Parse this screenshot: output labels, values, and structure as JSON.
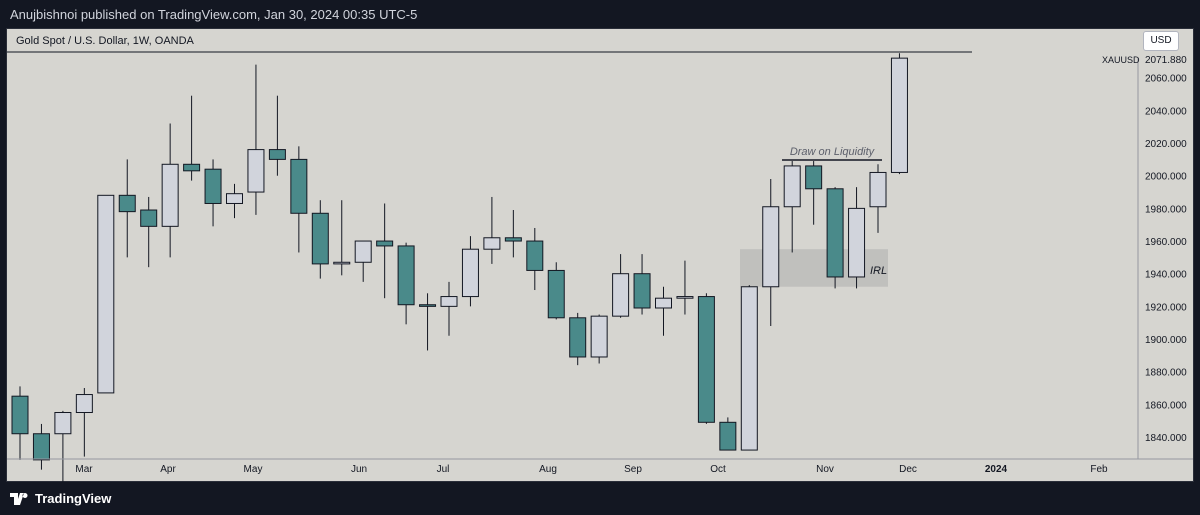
{
  "publisher_line": "Anujbishnoi published on TradingView.com, Jan 30, 2024 00:35 UTC-5",
  "chart_header": "Gold Spot / U.S. Dollar, 1W, OANDA",
  "currency_button": "USD",
  "footer_brand": "TradingView",
  "icons": {
    "logo": "tradingview-logo-icon"
  },
  "colors": {
    "bull_fill": "#d1d4dc",
    "bear_fill": "#4a8a8a",
    "wick": "#131722",
    "background": "#d6d5d0",
    "zone": "#c0c0bd"
  },
  "chart_data": {
    "type": "candlestick",
    "symbol_label": "XAUUSD",
    "last_price_label": "2071.880",
    "y_ticks": [
      "1840.000",
      "1860.000",
      "1880.000",
      "1900.000",
      "1920.000",
      "1940.000",
      "1960.000",
      "1980.000",
      "2000.000",
      "2020.000",
      "2040.000",
      "2060.000"
    ],
    "x_ticks": [
      "Mar",
      "Apr",
      "May",
      "Jun",
      "Jul",
      "Aug",
      "Sep",
      "Oct",
      "Nov",
      "Dec",
      "2024",
      "Feb"
    ],
    "candles": [
      {
        "date": "2023-02-06",
        "o": 1865,
        "h": 1871,
        "l": 1826,
        "c": 1842
      },
      {
        "date": "2023-02-13",
        "o": 1842,
        "h": 1848,
        "l": 1820,
        "c": 1826
      },
      {
        "date": "2023-02-20",
        "o": 1842,
        "h": 1856,
        "l": 1805,
        "c": 1855
      },
      {
        "date": "2023-02-27",
        "o": 1855,
        "h": 1870,
        "l": 1828,
        "c": 1866
      },
      {
        "date": "2023-03-06",
        "o": 1867,
        "h": 1988,
        "l": 1867,
        "c": 1988
      },
      {
        "date": "2023-03-13",
        "o": 1988,
        "h": 2010,
        "l": 1950,
        "c": 1978
      },
      {
        "date": "2023-03-20",
        "o": 1979,
        "h": 1987,
        "l": 1944,
        "c": 1969
      },
      {
        "date": "2023-03-27",
        "o": 1969,
        "h": 2032,
        "l": 1950,
        "c": 2007
      },
      {
        "date": "2023-04-03",
        "o": 2007,
        "h": 2049,
        "l": 1997,
        "c": 2003
      },
      {
        "date": "2023-04-10",
        "o": 2004,
        "h": 2010,
        "l": 1969,
        "c": 1983
      },
      {
        "date": "2023-04-17",
        "o": 1983,
        "h": 1995,
        "l": 1974,
        "c": 1989
      },
      {
        "date": "2023-04-24",
        "o": 1990,
        "h": 2068,
        "l": 1976,
        "c": 2016
      },
      {
        "date": "2023-05-01",
        "o": 2016,
        "h": 2049,
        "l": 2000,
        "c": 2010
      },
      {
        "date": "2023-05-08",
        "o": 2010,
        "h": 2018,
        "l": 1953,
        "c": 1977
      },
      {
        "date": "2023-05-15",
        "o": 1977,
        "h": 1985,
        "l": 1937,
        "c": 1946
      },
      {
        "date": "2023-05-22",
        "o": 1946,
        "h": 1985,
        "l": 1939,
        "c": 1947
      },
      {
        "date": "2023-05-29",
        "o": 1947,
        "h": 1960,
        "l": 1935,
        "c": 1960
      },
      {
        "date": "2023-06-05",
        "o": 1960,
        "h": 1983,
        "l": 1925,
        "c": 1957
      },
      {
        "date": "2023-06-12",
        "o": 1957,
        "h": 1959,
        "l": 1909,
        "c": 1921
      },
      {
        "date": "2023-06-19",
        "o": 1921,
        "h": 1928,
        "l": 1893,
        "c": 1920
      },
      {
        "date": "2023-06-26",
        "o": 1920,
        "h": 1935,
        "l": 1902,
        "c": 1926
      },
      {
        "date": "2023-07-03",
        "o": 1926,
        "h": 1963,
        "l": 1920,
        "c": 1955
      },
      {
        "date": "2023-07-10",
        "o": 1955,
        "h": 1987,
        "l": 1946,
        "c": 1962
      },
      {
        "date": "2023-07-17",
        "o": 1962,
        "h": 1979,
        "l": 1950,
        "c": 1960
      },
      {
        "date": "2023-07-24",
        "o": 1960,
        "h": 1968,
        "l": 1930,
        "c": 1942
      },
      {
        "date": "2023-07-31",
        "o": 1942,
        "h": 1947,
        "l": 1912,
        "c": 1913
      },
      {
        "date": "2023-08-07",
        "o": 1913,
        "h": 1916,
        "l": 1884,
        "c": 1889
      },
      {
        "date": "2023-08-14",
        "o": 1889,
        "h": 1915,
        "l": 1885,
        "c": 1914
      },
      {
        "date": "2023-08-21",
        "o": 1914,
        "h": 1952,
        "l": 1913,
        "c": 1940
      },
      {
        "date": "2023-08-28",
        "o": 1940,
        "h": 1952,
        "l": 1915,
        "c": 1919
      },
      {
        "date": "2023-09-04",
        "o": 1919,
        "h": 1932,
        "l": 1902,
        "c": 1925
      },
      {
        "date": "2023-09-11",
        "o": 1925,
        "h": 1948,
        "l": 1915,
        "c": 1926
      },
      {
        "date": "2023-09-18",
        "o": 1926,
        "h": 1928,
        "l": 1848,
        "c": 1849
      },
      {
        "date": "2023-09-25",
        "o": 1849,
        "h": 1852,
        "l": 1833,
        "c": 1832
      },
      {
        "date": "2023-10-02",
        "o": 1832,
        "h": 1933,
        "l": 1832,
        "c": 1932
      },
      {
        "date": "2023-10-09",
        "o": 1932,
        "h": 1998,
        "l": 1908,
        "c": 1981
      },
      {
        "date": "2023-10-16",
        "o": 1981,
        "h": 2009,
        "l": 1953,
        "c": 2006
      },
      {
        "date": "2023-10-23",
        "o": 2006,
        "h": 2009,
        "l": 1970,
        "c": 1992
      },
      {
        "date": "2023-10-30",
        "o": 1992,
        "h": 1993,
        "l": 1931,
        "c": 1938
      },
      {
        "date": "2023-11-06",
        "o": 1938,
        "h": 1993,
        "l": 1931,
        "c": 1980
      },
      {
        "date": "2023-11-13",
        "o": 1981,
        "h": 2007,
        "l": 1965,
        "c": 2002
      },
      {
        "date": "2023-11-20",
        "o": 2002,
        "h": 2075,
        "l": 2001,
        "c": 2072
      }
    ],
    "annotations": [
      {
        "type": "label",
        "text": "Draw on Liquidity"
      },
      {
        "type": "zone_label",
        "text": "IRL"
      }
    ]
  }
}
